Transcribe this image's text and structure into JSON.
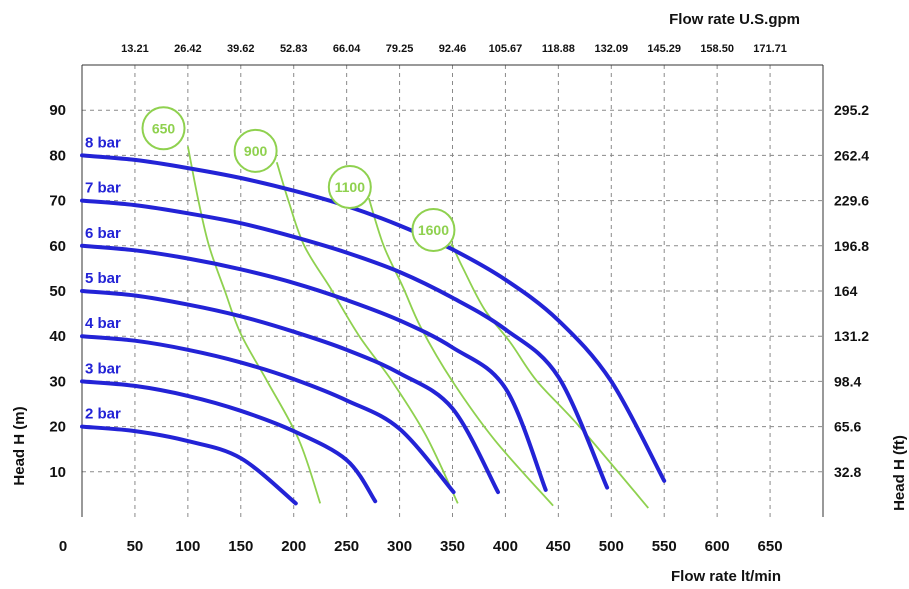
{
  "chart_data": {
    "type": "line",
    "title": "",
    "xlabel": "Flow rate  lt/min",
    "ylabel": "Head H (m)",
    "y2label": "Head H (ft)",
    "x2label": "Flow rate U.S.gpm",
    "xlim": [
      0,
      700
    ],
    "ylim": [
      0,
      100
    ],
    "grid": true,
    "x_ticks": [
      0,
      50,
      100,
      150,
      200,
      250,
      300,
      350,
      400,
      450,
      500,
      550,
      600,
      650
    ],
    "y_ticks": [
      10,
      20,
      30,
      40,
      50,
      60,
      70,
      80,
      90
    ],
    "top_ticks": [
      {
        "x": 50,
        "label": "13.21"
      },
      {
        "x": 100,
        "label": "26.42"
      },
      {
        "x": 150,
        "label": "39.62"
      },
      {
        "x": 200,
        "label": "52.83"
      },
      {
        "x": 250,
        "label": "66.04"
      },
      {
        "x": 300,
        "label": "79.25"
      },
      {
        "x": 350,
        "label": "92.46"
      },
      {
        "x": 400,
        "label": "105.67"
      },
      {
        "x": 450,
        "label": "118.88"
      },
      {
        "x": 500,
        "label": "132.09"
      },
      {
        "x": 550,
        "label": "145.29"
      },
      {
        "x": 600,
        "label": "158.50"
      },
      {
        "x": 650,
        "label": "171.71"
      }
    ],
    "right_ticks": [
      {
        "y": 10,
        "label": "32.8"
      },
      {
        "y": 20,
        "label": "65.6"
      },
      {
        "y": 30,
        "label": "98.4"
      },
      {
        "y": 40,
        "label": "131.2"
      },
      {
        "y": 50,
        "label": "164"
      },
      {
        "y": 60,
        "label": "196.8"
      },
      {
        "y": 70,
        "label": "229.6"
      },
      {
        "y": 80,
        "label": "262.4"
      },
      {
        "y": 90,
        "label": "295.2"
      }
    ],
    "series": [
      {
        "name": "2 bar",
        "color": "#2323d6",
        "points": [
          [
            0,
            20
          ],
          [
            50,
            19
          ],
          [
            100,
            16.8
          ],
          [
            150,
            13
          ],
          [
            202,
            3
          ]
        ]
      },
      {
        "name": "3 bar",
        "color": "#2323d6",
        "points": [
          [
            0,
            30
          ],
          [
            50,
            29
          ],
          [
            100,
            26.8
          ],
          [
            150,
            23.5
          ],
          [
            200,
            19
          ],
          [
            250,
            12.6
          ],
          [
            277,
            3.5
          ]
        ]
      },
      {
        "name": "4 bar",
        "color": "#2323d6",
        "points": [
          [
            0,
            40
          ],
          [
            50,
            39
          ],
          [
            100,
            37
          ],
          [
            150,
            34.2
          ],
          [
            200,
            30.5
          ],
          [
            250,
            25.8
          ],
          [
            300,
            19.5
          ],
          [
            351,
            5.5
          ]
        ]
      },
      {
        "name": "5 bar",
        "color": "#2323d6",
        "points": [
          [
            0,
            50
          ],
          [
            50,
            49
          ],
          [
            100,
            47
          ],
          [
            150,
            44.4
          ],
          [
            200,
            41
          ],
          [
            250,
            37
          ],
          [
            300,
            31.8
          ],
          [
            350,
            24
          ],
          [
            393,
            5.5
          ]
        ]
      },
      {
        "name": "6 bar",
        "color": "#2323d6",
        "points": [
          [
            0,
            60
          ],
          [
            50,
            59
          ],
          [
            100,
            57.2
          ],
          [
            150,
            54.8
          ],
          [
            200,
            51.8
          ],
          [
            250,
            48
          ],
          [
            300,
            43.5
          ],
          [
            350,
            37.5
          ],
          [
            400,
            28.5
          ],
          [
            438,
            6
          ]
        ]
      },
      {
        "name": "7 bar",
        "color": "#2323d6",
        "points": [
          [
            0,
            70
          ],
          [
            50,
            69
          ],
          [
            100,
            67.2
          ],
          [
            150,
            65
          ],
          [
            200,
            62
          ],
          [
            250,
            58.5
          ],
          [
            300,
            54.2
          ],
          [
            350,
            48.5
          ],
          [
            400,
            41.5
          ],
          [
            450,
            31
          ],
          [
            496,
            6.5
          ]
        ]
      },
      {
        "name": "8 bar",
        "color": "#2323d6",
        "points": [
          [
            0,
            80
          ],
          [
            50,
            79
          ],
          [
            100,
            77.2
          ],
          [
            150,
            75
          ],
          [
            200,
            72.2
          ],
          [
            250,
            68.8
          ],
          [
            300,
            64.5
          ],
          [
            350,
            59.2
          ],
          [
            400,
            52.5
          ],
          [
            450,
            43.5
          ],
          [
            500,
            30
          ],
          [
            550,
            8
          ]
        ]
      }
    ],
    "rpm_curves": [
      {
        "name": "650",
        "color": "#8fd14f",
        "points": [
          [
            100,
            82
          ],
          [
            110,
            70
          ],
          [
            120,
            60
          ],
          [
            135,
            50
          ],
          [
            150,
            40.5
          ],
          [
            175,
            30
          ],
          [
            205,
            17
          ],
          [
            225,
            3
          ]
        ]
      },
      {
        "name": "900",
        "color": "#8fd14f",
        "points": [
          [
            184,
            78.5
          ],
          [
            195,
            70
          ],
          [
            210,
            60
          ],
          [
            235,
            50.5
          ],
          [
            262,
            40
          ],
          [
            293,
            30
          ],
          [
            325,
            18
          ],
          [
            355,
            3
          ]
        ]
      },
      {
        "name": "1100",
        "color": "#8fd14f",
        "points": [
          [
            271,
            70.5
          ],
          [
            285,
            60
          ],
          [
            303,
            51
          ],
          [
            320,
            42
          ],
          [
            350,
            30
          ],
          [
            390,
            17
          ],
          [
            445,
            2.5
          ]
        ]
      },
      {
        "name": "1600",
        "color": "#8fd14f",
        "points": [
          [
            349,
            60.5
          ],
          [
            360,
            55
          ],
          [
            380,
            46
          ],
          [
            405,
            38.5
          ],
          [
            430,
            30
          ],
          [
            470,
            20
          ],
          [
            535,
            2
          ]
        ]
      }
    ],
    "rpm_label_pos": [
      {
        "name": "650",
        "x": 77,
        "y": 86
      },
      {
        "name": "900",
        "x": 164,
        "y": 81
      },
      {
        "name": "1100",
        "x": 253,
        "y": 73
      },
      {
        "name": "1600",
        "x": 332,
        "y": 63.5
      }
    ]
  }
}
